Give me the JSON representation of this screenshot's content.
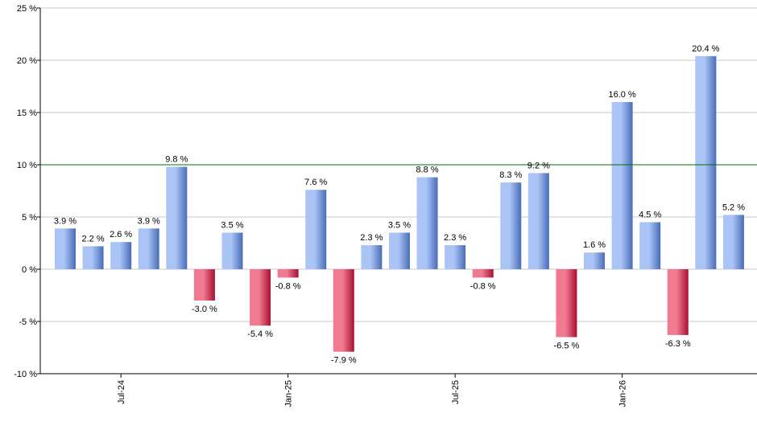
{
  "chart_data": {
    "type": "bar",
    "title": "",
    "xlabel": "",
    "ylabel": "",
    "ylim": [
      -10,
      25
    ],
    "y_ticks": [
      -10,
      -5,
      0,
      5,
      10,
      15,
      20,
      25
    ],
    "y_tick_labels": [
      "-10 %",
      "-5 %",
      "0 %",
      "5 %",
      "10 %",
      "15 %",
      "20 %",
      "25 %"
    ],
    "grid": true,
    "reference_line": 10,
    "x_tick_labels": [
      {
        "index": 2,
        "label": "Jul-24"
      },
      {
        "index": 8,
        "label": "Jan-25"
      },
      {
        "index": 14,
        "label": "Jul-25"
      },
      {
        "index": 20,
        "label": "Jan-26"
      }
    ],
    "values": [
      3.9,
      2.2,
      2.6,
      3.9,
      9.8,
      -3.0,
      3.5,
      -5.4,
      -0.8,
      7.6,
      -7.9,
      2.3,
      3.5,
      8.8,
      2.3,
      -0.8,
      8.3,
      9.2,
      -6.5,
      1.6,
      16.0,
      4.5,
      -6.3,
      20.4,
      5.2
    ],
    "value_labels": [
      "3.9 %",
      "2.2 %",
      "2.6 %",
      "3.9 %",
      "9.8 %",
      "-3.0 %",
      "3.5 %",
      "-5.4 %",
      "-0.8 %",
      "7.6 %",
      "-7.9 %",
      "2.3 %",
      "3.5 %",
      "8.8 %",
      "2.3 %",
      "-0.8 %",
      "8.3 %",
      "9.2 %",
      "-6.5 %",
      "1.6 %",
      "16.0 %",
      "4.5 %",
      "-6.3 %",
      "20.4 %",
      "5.2 %"
    ],
    "colors": {
      "positive_light": "#a9c4f5",
      "positive_dark": "#4a6cb8",
      "negative_light": "#f07a92",
      "negative_dark": "#a8102e",
      "grid": "#c8c8c8",
      "axis": "#000000",
      "reference_line": "#007000"
    }
  }
}
